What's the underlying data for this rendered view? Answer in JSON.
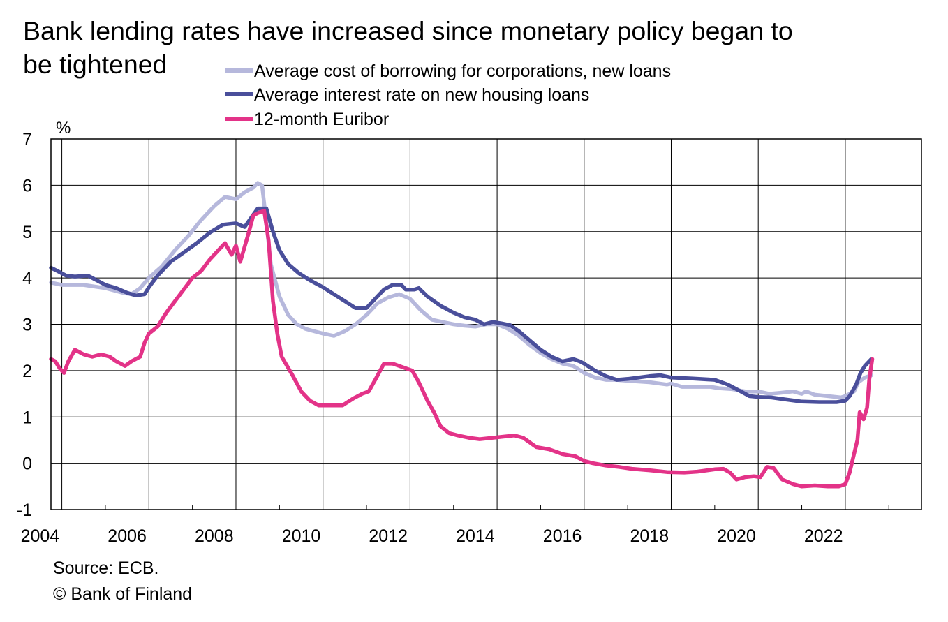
{
  "chart_data": {
    "type": "line",
    "title": "Bank lending rates have increased since monetary policy began to be tightened",
    "title_lines": [
      "Bank lending rates have increased since monetary policy began to",
      "be tightened"
    ],
    "ylabel": "%",
    "xlabel": "",
    "ylim": [
      -1,
      7
    ],
    "yticks": [
      -1,
      0,
      1,
      2,
      3,
      4,
      5,
      6,
      7
    ],
    "xlim": [
      2003.75,
      2023.75
    ],
    "xtick_labels": [
      "2004",
      "2006",
      "2008",
      "2010",
      "2012",
      "2014",
      "2016",
      "2018",
      "2020",
      "2022"
    ],
    "grid": true,
    "legend_position": "top-center",
    "source": "Source: ECB.",
    "copyright": "© Bank of Finland",
    "series": [
      {
        "name": "Average cost of borrowing for corporations, new loans",
        "color": "#b6b8dc",
        "points": [
          [
            2003.75,
            3.9
          ],
          [
            2004.0,
            3.85
          ],
          [
            2004.5,
            3.85
          ],
          [
            2005.0,
            3.78
          ],
          [
            2005.4,
            3.68
          ],
          [
            2005.6,
            3.65
          ],
          [
            2005.8,
            3.78
          ],
          [
            2006.0,
            4.0
          ],
          [
            2006.3,
            4.25
          ],
          [
            2006.6,
            4.6
          ],
          [
            2006.9,
            4.9
          ],
          [
            2007.2,
            5.25
          ],
          [
            2007.5,
            5.55
          ],
          [
            2007.75,
            5.75
          ],
          [
            2008.0,
            5.7
          ],
          [
            2008.2,
            5.85
          ],
          [
            2008.4,
            5.95
          ],
          [
            2008.5,
            6.05
          ],
          [
            2008.6,
            6.0
          ],
          [
            2008.7,
            5.2
          ],
          [
            2008.8,
            4.3
          ],
          [
            2009.0,
            3.6
          ],
          [
            2009.2,
            3.2
          ],
          [
            2009.4,
            3.0
          ],
          [
            2009.6,
            2.9
          ],
          [
            2009.8,
            2.85
          ],
          [
            2010.0,
            2.8
          ],
          [
            2010.25,
            2.75
          ],
          [
            2010.5,
            2.85
          ],
          [
            2010.75,
            3.0
          ],
          [
            2011.0,
            3.2
          ],
          [
            2011.25,
            3.45
          ],
          [
            2011.5,
            3.58
          ],
          [
            2011.75,
            3.65
          ],
          [
            2012.0,
            3.55
          ],
          [
            2012.25,
            3.3
          ],
          [
            2012.5,
            3.1
          ],
          [
            2012.75,
            3.05
          ],
          [
            2013.0,
            3.0
          ],
          [
            2013.25,
            2.97
          ],
          [
            2013.5,
            2.95
          ],
          [
            2013.75,
            3.0
          ],
          [
            2014.0,
            3.0
          ],
          [
            2014.25,
            2.9
          ],
          [
            2014.5,
            2.75
          ],
          [
            2014.75,
            2.55
          ],
          [
            2015.0,
            2.38
          ],
          [
            2015.25,
            2.25
          ],
          [
            2015.5,
            2.15
          ],
          [
            2015.75,
            2.1
          ],
          [
            2016.0,
            1.95
          ],
          [
            2016.25,
            1.85
          ],
          [
            2016.5,
            1.8
          ],
          [
            2016.75,
            1.8
          ],
          [
            2017.0,
            1.78
          ],
          [
            2017.5,
            1.75
          ],
          [
            2017.9,
            1.7
          ],
          [
            2018.0,
            1.72
          ],
          [
            2018.25,
            1.65
          ],
          [
            2018.5,
            1.65
          ],
          [
            2018.9,
            1.65
          ],
          [
            2019.1,
            1.62
          ],
          [
            2019.4,
            1.6
          ],
          [
            2019.7,
            1.55
          ],
          [
            2020.0,
            1.55
          ],
          [
            2020.25,
            1.5
          ],
          [
            2020.5,
            1.52
          ],
          [
            2020.8,
            1.55
          ],
          [
            2021.0,
            1.5
          ],
          [
            2021.1,
            1.55
          ],
          [
            2021.3,
            1.48
          ],
          [
            2021.6,
            1.45
          ],
          [
            2021.9,
            1.42
          ],
          [
            2022.0,
            1.45
          ],
          [
            2022.2,
            1.55
          ],
          [
            2022.3,
            1.75
          ],
          [
            2022.45,
            1.85
          ],
          [
            2022.6,
            1.9
          ]
        ]
      },
      {
        "name": "Average interest rate on new housing loans",
        "color": "#4a4f9b",
        "points": [
          [
            2003.75,
            4.22
          ],
          [
            2003.9,
            4.15
          ],
          [
            2004.1,
            4.05
          ],
          [
            2004.3,
            4.03
          ],
          [
            2004.6,
            4.05
          ],
          [
            2004.8,
            3.95
          ],
          [
            2005.0,
            3.85
          ],
          [
            2005.25,
            3.78
          ],
          [
            2005.5,
            3.68
          ],
          [
            2005.7,
            3.62
          ],
          [
            2005.9,
            3.65
          ],
          [
            2006.0,
            3.8
          ],
          [
            2006.2,
            4.05
          ],
          [
            2006.5,
            4.35
          ],
          [
            2006.8,
            4.55
          ],
          [
            2007.1,
            4.75
          ],
          [
            2007.4,
            4.98
          ],
          [
            2007.7,
            5.15
          ],
          [
            2008.0,
            5.18
          ],
          [
            2008.2,
            5.1
          ],
          [
            2008.35,
            5.3
          ],
          [
            2008.5,
            5.5
          ],
          [
            2008.7,
            5.5
          ],
          [
            2008.85,
            5.0
          ],
          [
            2009.0,
            4.6
          ],
          [
            2009.2,
            4.3
          ],
          [
            2009.45,
            4.1
          ],
          [
            2009.7,
            3.95
          ],
          [
            2010.0,
            3.8
          ],
          [
            2010.25,
            3.65
          ],
          [
            2010.5,
            3.5
          ],
          [
            2010.75,
            3.35
          ],
          [
            2011.0,
            3.35
          ],
          [
            2011.2,
            3.55
          ],
          [
            2011.4,
            3.75
          ],
          [
            2011.6,
            3.85
          ],
          [
            2011.8,
            3.85
          ],
          [
            2011.9,
            3.75
          ],
          [
            2012.1,
            3.75
          ],
          [
            2012.2,
            3.78
          ],
          [
            2012.4,
            3.6
          ],
          [
            2012.7,
            3.4
          ],
          [
            2013.0,
            3.25
          ],
          [
            2013.25,
            3.15
          ],
          [
            2013.5,
            3.1
          ],
          [
            2013.7,
            3.0
          ],
          [
            2013.9,
            3.05
          ],
          [
            2014.1,
            3.02
          ],
          [
            2014.3,
            2.98
          ],
          [
            2014.5,
            2.85
          ],
          [
            2014.75,
            2.65
          ],
          [
            2015.0,
            2.45
          ],
          [
            2015.25,
            2.3
          ],
          [
            2015.5,
            2.2
          ],
          [
            2015.75,
            2.25
          ],
          [
            2015.9,
            2.2
          ],
          [
            2016.0,
            2.15
          ],
          [
            2016.25,
            2.0
          ],
          [
            2016.5,
            1.88
          ],
          [
            2016.75,
            1.8
          ],
          [
            2017.0,
            1.82
          ],
          [
            2017.25,
            1.85
          ],
          [
            2017.5,
            1.88
          ],
          [
            2017.75,
            1.9
          ],
          [
            2018.0,
            1.85
          ],
          [
            2018.5,
            1.83
          ],
          [
            2019.0,
            1.8
          ],
          [
            2019.3,
            1.7
          ],
          [
            2019.6,
            1.55
          ],
          [
            2019.8,
            1.45
          ],
          [
            2020.0,
            1.43
          ],
          [
            2020.3,
            1.42
          ],
          [
            2020.6,
            1.38
          ],
          [
            2021.0,
            1.33
          ],
          [
            2021.4,
            1.32
          ],
          [
            2021.8,
            1.32
          ],
          [
            2022.0,
            1.35
          ],
          [
            2022.1,
            1.45
          ],
          [
            2022.25,
            1.7
          ],
          [
            2022.35,
            1.95
          ],
          [
            2022.45,
            2.1
          ],
          [
            2022.6,
            2.25
          ]
        ]
      },
      {
        "name": "12-month Euribor",
        "color": "#e33388",
        "points": [
          [
            2003.75,
            2.25
          ],
          [
            2003.85,
            2.2
          ],
          [
            2003.95,
            2.05
          ],
          [
            2004.05,
            1.95
          ],
          [
            2004.15,
            2.2
          ],
          [
            2004.3,
            2.45
          ],
          [
            2004.5,
            2.35
          ],
          [
            2004.7,
            2.3
          ],
          [
            2004.9,
            2.35
          ],
          [
            2005.1,
            2.3
          ],
          [
            2005.25,
            2.2
          ],
          [
            2005.45,
            2.1
          ],
          [
            2005.6,
            2.2
          ],
          [
            2005.8,
            2.3
          ],
          [
            2005.9,
            2.6
          ],
          [
            2006.0,
            2.8
          ],
          [
            2006.2,
            2.95
          ],
          [
            2006.4,
            3.25
          ],
          [
            2006.6,
            3.5
          ],
          [
            2006.8,
            3.75
          ],
          [
            2007.0,
            4.0
          ],
          [
            2007.2,
            4.15
          ],
          [
            2007.4,
            4.4
          ],
          [
            2007.6,
            4.6
          ],
          [
            2007.75,
            4.75
          ],
          [
            2007.9,
            4.5
          ],
          [
            2008.0,
            4.7
          ],
          [
            2008.1,
            4.35
          ],
          [
            2008.3,
            5.0
          ],
          [
            2008.4,
            5.35
          ],
          [
            2008.5,
            5.4
          ],
          [
            2008.65,
            5.45
          ],
          [
            2008.75,
            4.8
          ],
          [
            2008.85,
            3.5
          ],
          [
            2008.95,
            2.8
          ],
          [
            2009.05,
            2.3
          ],
          [
            2009.3,
            1.9
          ],
          [
            2009.5,
            1.55
          ],
          [
            2009.7,
            1.35
          ],
          [
            2009.9,
            1.25
          ],
          [
            2010.2,
            1.25
          ],
          [
            2010.45,
            1.25
          ],
          [
            2010.7,
            1.4
          ],
          [
            2010.9,
            1.5
          ],
          [
            2011.05,
            1.55
          ],
          [
            2011.2,
            1.8
          ],
          [
            2011.4,
            2.15
          ],
          [
            2011.6,
            2.15
          ],
          [
            2011.75,
            2.1
          ],
          [
            2011.9,
            2.05
          ],
          [
            2012.05,
            2.0
          ],
          [
            2012.2,
            1.75
          ],
          [
            2012.4,
            1.35
          ],
          [
            2012.55,
            1.1
          ],
          [
            2012.7,
            0.8
          ],
          [
            2012.9,
            0.65
          ],
          [
            2013.1,
            0.6
          ],
          [
            2013.35,
            0.55
          ],
          [
            2013.6,
            0.52
          ],
          [
            2013.9,
            0.55
          ],
          [
            2014.2,
            0.58
          ],
          [
            2014.4,
            0.6
          ],
          [
            2014.6,
            0.55
          ],
          [
            2014.75,
            0.45
          ],
          [
            2014.9,
            0.35
          ],
          [
            2015.2,
            0.3
          ],
          [
            2015.5,
            0.2
          ],
          [
            2015.8,
            0.15
          ],
          [
            2016.0,
            0.05
          ],
          [
            2016.2,
            0.0
          ],
          [
            2016.5,
            -0.05
          ],
          [
            2016.8,
            -0.08
          ],
          [
            2017.1,
            -0.12
          ],
          [
            2017.5,
            -0.15
          ],
          [
            2017.9,
            -0.19
          ],
          [
            2018.3,
            -0.2
          ],
          [
            2018.6,
            -0.18
          ],
          [
            2019.0,
            -0.13
          ],
          [
            2019.2,
            -0.12
          ],
          [
            2019.35,
            -0.2
          ],
          [
            2019.5,
            -0.35
          ],
          [
            2019.7,
            -0.3
          ],
          [
            2019.9,
            -0.28
          ],
          [
            2020.05,
            -0.3
          ],
          [
            2020.2,
            -0.08
          ],
          [
            2020.35,
            -0.1
          ],
          [
            2020.55,
            -0.35
          ],
          [
            2020.8,
            -0.45
          ],
          [
            2021.0,
            -0.5
          ],
          [
            2021.3,
            -0.48
          ],
          [
            2021.6,
            -0.5
          ],
          [
            2021.85,
            -0.5
          ],
          [
            2022.0,
            -0.45
          ],
          [
            2022.1,
            -0.2
          ],
          [
            2022.2,
            0.2
          ],
          [
            2022.28,
            0.5
          ],
          [
            2022.33,
            1.1
          ],
          [
            2022.42,
            0.95
          ],
          [
            2022.5,
            1.2
          ],
          [
            2022.55,
            1.8
          ],
          [
            2022.62,
            2.25
          ]
        ]
      }
    ]
  }
}
